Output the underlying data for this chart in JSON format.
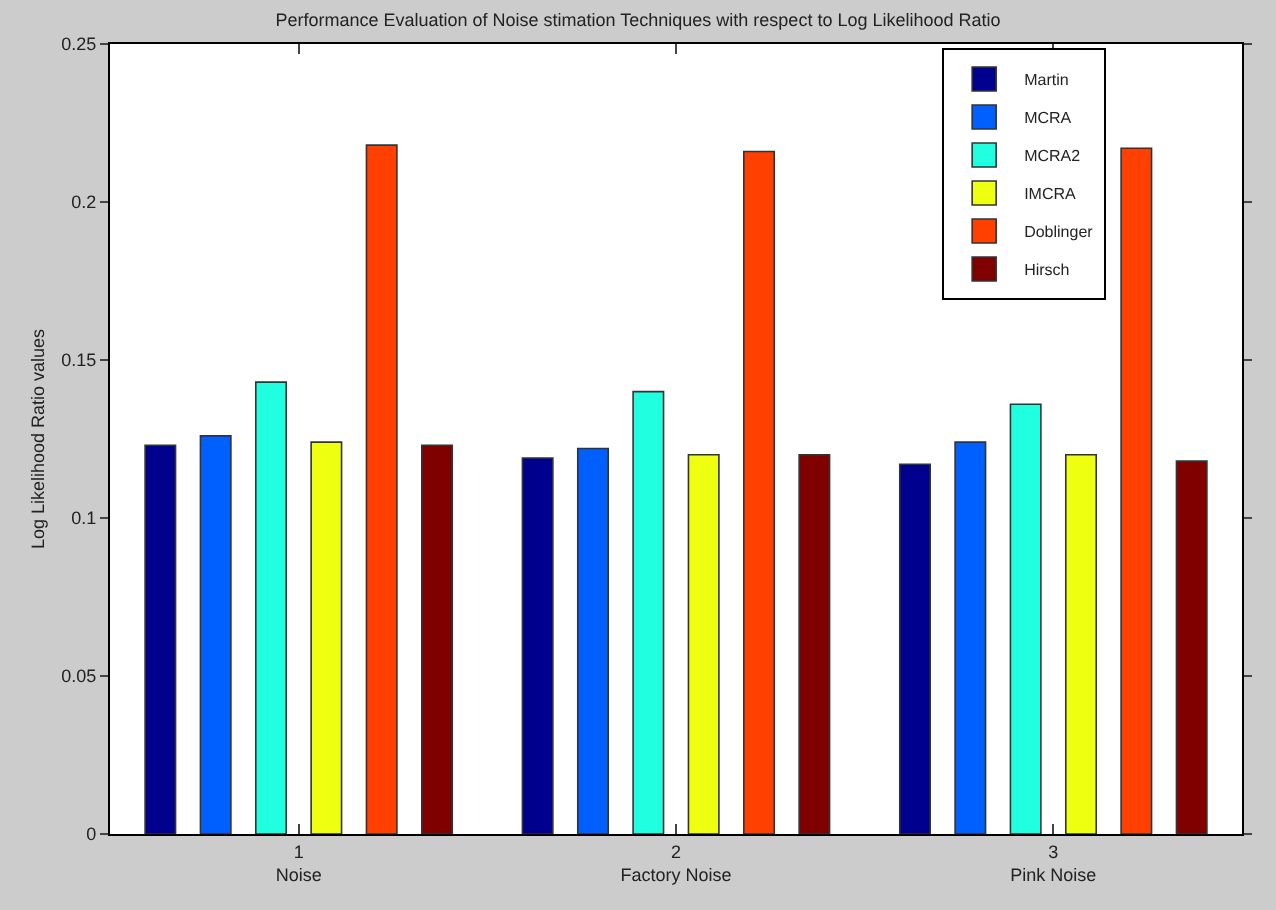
{
  "chart_data": {
    "type": "bar",
    "title": "Performance Evaluation of Noise stimation Techniques with respect to Log Likelihood Ratio",
    "ylabel": "Log Likelihood Ratio values",
    "categories": [
      "1\nNoise",
      "2\nFactory Noise",
      "3\nPink Noise"
    ],
    "series": [
      {
        "name": "Martin",
        "color": "#00008f",
        "values": [
          0.123,
          0.119,
          0.117
        ]
      },
      {
        "name": "MCRA",
        "color": "#0060ff",
        "values": [
          0.126,
          0.122,
          0.124
        ]
      },
      {
        "name": "MCRA2",
        "color": "#20ffdf",
        "values": [
          0.143,
          0.14,
          0.136
        ]
      },
      {
        "name": "IMCRA",
        "color": "#efff10",
        "values": [
          0.124,
          0.12,
          0.12
        ]
      },
      {
        "name": "Doblinger",
        "color": "#ff4000",
        "values": [
          0.218,
          0.216,
          0.217
        ]
      },
      {
        "name": "Hirsch",
        "color": "#800000",
        "values": [
          0.123,
          0.12,
          0.118
        ]
      }
    ],
    "ylim": [
      0,
      0.25
    ],
    "yticks": [
      0,
      0.05,
      0.1,
      0.15,
      0.2,
      0.25
    ],
    "legend": "top right"
  }
}
